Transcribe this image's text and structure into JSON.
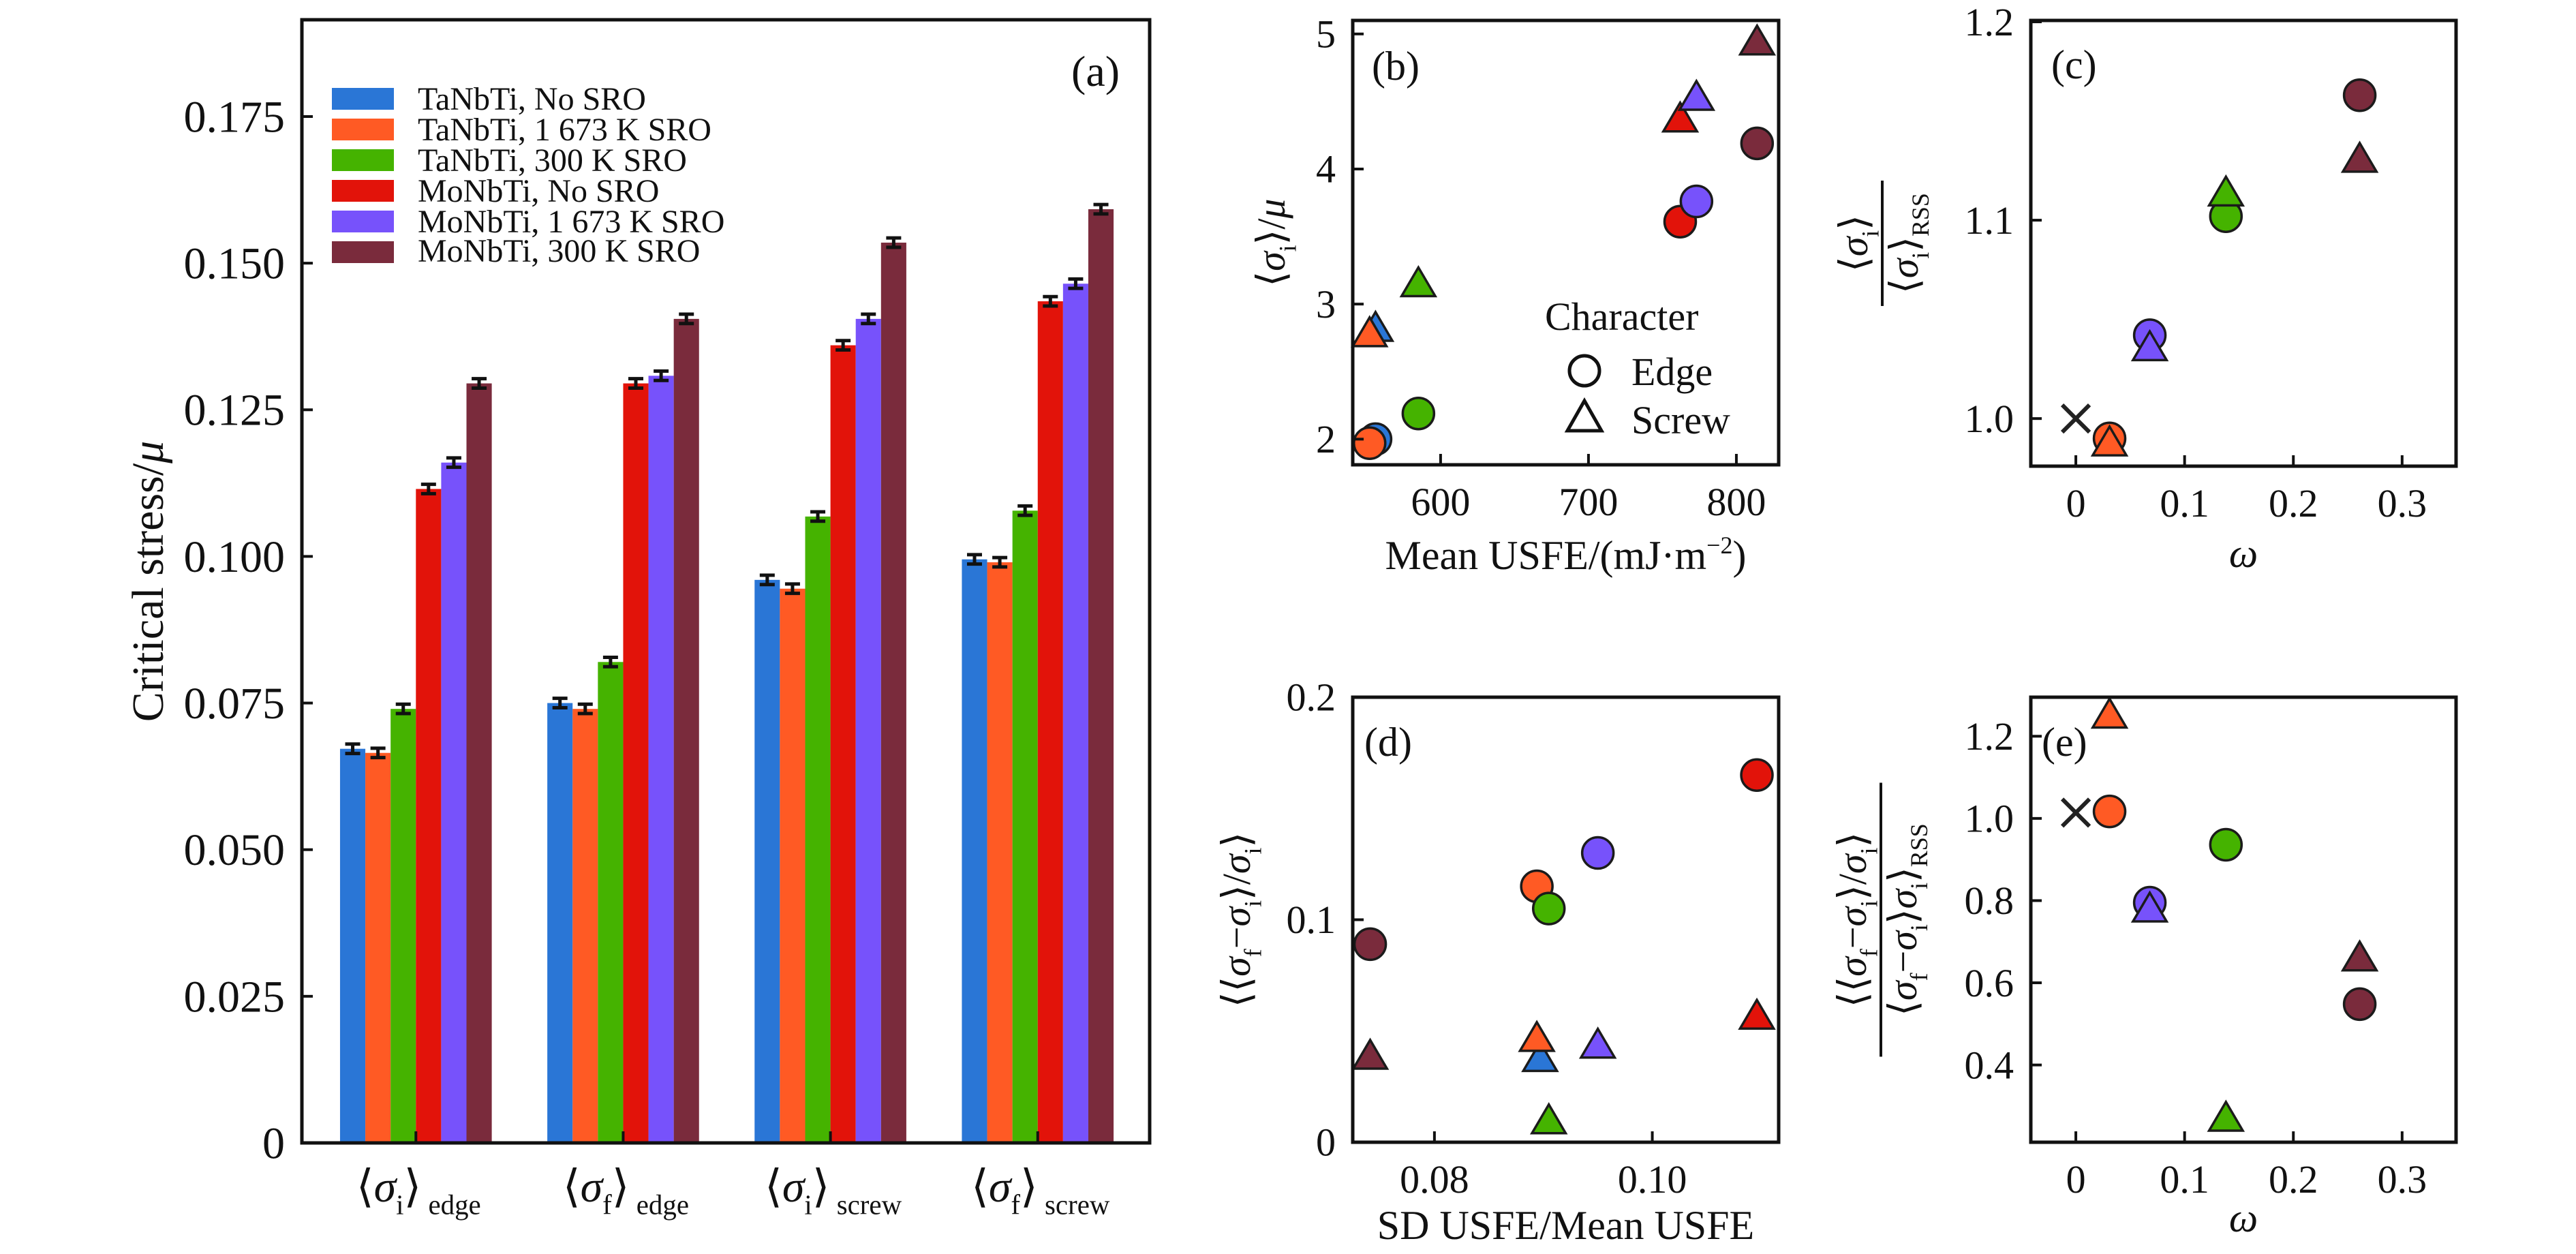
{
  "colors": {
    "series": [
      "#2a76d6",
      "#ff5a24",
      "#45b300",
      "#e2130a",
      "#7752fb",
      "#7a2b3c"
    ],
    "marker_edge": "#1b1b1b",
    "axes": "#111111"
  },
  "series_names": [
    "TaNbTi, No SRO",
    "TaNbTi, 1 673 K SRO",
    "TaNbTi, 300 K SRO",
    "MoNbTi, No SRO",
    "MoNbTi, 1 673 K SRO",
    "MoNbTi, 300 K SRO"
  ],
  "chart_data": [
    {
      "panel": "(a)",
      "type": "bar",
      "grid": false,
      "legend": "upper-left",
      "categories": [
        [
          {
            "t": "⟨"
          },
          {
            "t": "σ",
            "it": 1
          },
          {
            "t": "i",
            "sub": 1
          },
          {
            "t": "⟩"
          },
          {
            "t": " edge",
            "sub": 1
          }
        ],
        [
          {
            "t": "⟨"
          },
          {
            "t": "σ",
            "it": 1
          },
          {
            "t": "f",
            "sub": 1
          },
          {
            "t": "⟩"
          },
          {
            "t": " edge",
            "sub": 1
          }
        ],
        [
          {
            "t": "⟨"
          },
          {
            "t": "σ",
            "it": 1
          },
          {
            "t": "i",
            "sub": 1
          },
          {
            "t": "⟩"
          },
          {
            "t": " screw",
            "sub": 1
          }
        ],
        [
          {
            "t": "⟨"
          },
          {
            "t": "σ",
            "it": 1
          },
          {
            "t": "f",
            "sub": 1
          },
          {
            "t": "⟩"
          },
          {
            "t": " screw",
            "sub": 1
          }
        ]
      ],
      "ylabel": [
        {
          "t": "Critical stress/"
        },
        {
          "t": "μ",
          "it": 1
        }
      ],
      "ylim": [
        0,
        0.1915
      ],
      "xlim": [
        -0.55,
        3.54
      ],
      "yticks": [
        0,
        0.025,
        0.05,
        0.075,
        0.1,
        0.125,
        0.15,
        0.175
      ],
      "ytick_labels": [
        "0",
        "0.025",
        "0.050",
        "0.075",
        "0.100",
        "0.125",
        "0.150",
        "0.175"
      ],
      "series": [
        {
          "name": "TaNbTi, No SRO",
          "values": [
            0.0672,
            0.075,
            0.096,
            0.0995
          ],
          "error": [
            0.0008,
            0.0008,
            0.0008,
            0.0008
          ]
        },
        {
          "name": "TaNbTi, 1 673 K SRO",
          "values": [
            0.0665,
            0.074,
            0.0945,
            0.099
          ],
          "error": [
            0.0008,
            0.0008,
            0.0008,
            0.0008
          ]
        },
        {
          "name": "TaNbTi, 300 K SRO",
          "values": [
            0.074,
            0.082,
            0.1068,
            0.1078
          ],
          "error": [
            0.0008,
            0.0008,
            0.0008,
            0.0008
          ]
        },
        {
          "name": "MoNbTi, No SRO",
          "values": [
            0.1115,
            0.1295,
            0.136,
            0.1435
          ],
          "error": [
            0.0008,
            0.0008,
            0.0008,
            0.0008
          ]
        },
        {
          "name": "MoNbTi, 1 673 K SRO",
          "values": [
            0.116,
            0.1308,
            0.1405,
            0.1465
          ],
          "error": [
            0.0008,
            0.0008,
            0.0008,
            0.0008
          ]
        },
        {
          "name": "MoNbTi, 300 K SRO",
          "values": [
            0.1295,
            0.1405,
            0.1535,
            0.1592
          ],
          "error": [
            0.0008,
            0.0008,
            0.0008,
            0.0008
          ]
        }
      ]
    },
    {
      "panel": "(b)",
      "type": "scatter",
      "grid": false,
      "legend": "lower-right",
      "legend_title": "Character",
      "legend_entries": [
        {
          "shape": "circle",
          "label": "Edge"
        },
        {
          "shape": "triangle",
          "label": "Screw"
        }
      ],
      "xlabel": [
        {
          "t": "Mean USFE/(mJ·m"
        },
        {
          "t": "−2",
          "sup": 1
        },
        {
          "t": ")"
        }
      ],
      "ylabel": [
        {
          "t": "⟨"
        },
        {
          "t": "σ",
          "it": 1
        },
        {
          "t": "i",
          "sub": 1
        },
        {
          "t": "⟩/"
        },
        {
          "t": "μ",
          "it": 1
        }
      ],
      "xlim": [
        540.6,
        828.6
      ],
      "ylim": [
        1.81,
        5.1
      ],
      "xticks": [
        600,
        700,
        800
      ],
      "xtick_labels": [
        "600",
        "700",
        "800"
      ],
      "yticks": [
        2,
        3,
        4,
        5
      ],
      "ytick_labels": [
        "2",
        "3",
        "4",
        "5"
      ],
      "points": [
        {
          "series": 0,
          "shape": "circle",
          "x": 556,
          "y": 2.0
        },
        {
          "series": 0,
          "shape": "triangle",
          "x": 556,
          "y": 2.81
        },
        {
          "series": 1,
          "shape": "circle",
          "x": 552,
          "y": 1.97
        },
        {
          "series": 1,
          "shape": "triangle",
          "x": 552,
          "y": 2.77
        },
        {
          "series": 2,
          "shape": "circle",
          "x": 585,
          "y": 2.19
        },
        {
          "series": 2,
          "shape": "triangle",
          "x": 585,
          "y": 3.14
        },
        {
          "series": 3,
          "shape": "circle",
          "x": 762,
          "y": 3.61
        },
        {
          "series": 3,
          "shape": "triangle",
          "x": 762,
          "y": 4.36
        },
        {
          "series": 4,
          "shape": "circle",
          "x": 773,
          "y": 3.76
        },
        {
          "series": 4,
          "shape": "triangle",
          "x": 773,
          "y": 4.52
        },
        {
          "series": 5,
          "shape": "circle",
          "x": 814,
          "y": 4.19
        },
        {
          "series": 5,
          "shape": "triangle",
          "x": 814,
          "y": 4.93
        }
      ]
    },
    {
      "panel": "(c)",
      "type": "scatter",
      "grid": false,
      "xlabel": [
        {
          "t": "ω",
          "it": 1
        }
      ],
      "ylabel_fraction": {
        "num": [
          {
            "t": "⟨"
          },
          {
            "t": "σ",
            "it": 1
          },
          {
            "t": "i",
            "sub": 1
          },
          {
            "t": "⟩"
          }
        ],
        "den": [
          {
            "t": "⟨"
          },
          {
            "t": "σ",
            "it": 1
          },
          {
            "t": "i",
            "sub": 1
          },
          {
            "t": "⟩"
          },
          {
            "t": "RSS",
            "sub": 1
          }
        ]
      },
      "xlim": [
        -0.0414,
        0.3496
      ],
      "ylim": [
        0.976,
        1.2007
      ],
      "xticks": [
        0,
        0.1,
        0.2,
        0.3
      ],
      "xtick_labels": [
        "0",
        "0.1",
        "0.2",
        "0.3"
      ],
      "yticks": [
        1.0,
        1.1,
        1.2
      ],
      "ytick_labels": [
        "1.0",
        "1.1",
        "1.2"
      ],
      "points": [
        {
          "series": null,
          "shape": "x",
          "x": 0,
          "y": 1.0
        },
        {
          "series": 1,
          "shape": "circle",
          "x": 0.031,
          "y": 0.99
        },
        {
          "series": 1,
          "shape": "triangle",
          "x": 0.031,
          "y": 0.987
        },
        {
          "series": 4,
          "shape": "circle",
          "x": 0.068,
          "y": 1.042
        },
        {
          "series": 4,
          "shape": "triangle",
          "x": 0.068,
          "y": 1.035
        },
        {
          "series": 2,
          "shape": "circle",
          "x": 0.138,
          "y": 1.102
        },
        {
          "series": 2,
          "shape": "triangle",
          "x": 0.138,
          "y": 1.113
        },
        {
          "series": 5,
          "shape": "circle",
          "x": 0.261,
          "y": 1.163
        },
        {
          "series": 5,
          "shape": "triangle",
          "x": 0.261,
          "y": 1.13
        }
      ]
    },
    {
      "panel": "(d)",
      "type": "scatter",
      "grid": false,
      "xlabel": [
        {
          "t": "SD USFE/Mean USFE"
        }
      ],
      "ylabel": [
        {
          "t": "⟨⟨"
        },
        {
          "t": "σ",
          "it": 1
        },
        {
          "t": "f",
          "sub": 1
        },
        {
          "t": "−"
        },
        {
          "t": "σ",
          "it": 1
        },
        {
          "t": "i",
          "sub": 1
        },
        {
          "t": "⟩/"
        },
        {
          "t": "σ",
          "it": 1
        },
        {
          "t": "i",
          "sub": 1
        },
        {
          "t": "⟩"
        }
      ],
      "xlim": [
        0.0725,
        0.1116
      ],
      "ylim": [
        0,
        0.2
      ],
      "xticks": [
        0.08,
        0.1
      ],
      "xtick_labels": [
        "0.08",
        "0.10"
      ],
      "yticks": [
        0,
        0.1,
        0.2
      ],
      "ytick_labels": [
        "0",
        "0.1",
        "0.2"
      ],
      "points": [
        {
          "series": 0,
          "shape": "triangle",
          "x": 0.0897,
          "y": 0.037
        },
        {
          "series": 1,
          "shape": "circle",
          "x": 0.0894,
          "y": 0.115
        },
        {
          "series": 1,
          "shape": "triangle",
          "x": 0.0894,
          "y": 0.046
        },
        {
          "series": 2,
          "shape": "circle",
          "x": 0.0905,
          "y": 0.105
        },
        {
          "series": 2,
          "shape": "triangle",
          "x": 0.0905,
          "y": 0.009
        },
        {
          "series": 3,
          "shape": "circle",
          "x": 0.1096,
          "y": 0.165
        },
        {
          "series": 3,
          "shape": "triangle",
          "x": 0.1096,
          "y": 0.056
        },
        {
          "series": 4,
          "shape": "circle",
          "x": 0.095,
          "y": 0.13
        },
        {
          "series": 4,
          "shape": "triangle",
          "x": 0.095,
          "y": 0.043
        },
        {
          "series": 5,
          "shape": "circle",
          "x": 0.0741,
          "y": 0.089
        },
        {
          "series": 5,
          "shape": "triangle",
          "x": 0.0741,
          "y": 0.038
        }
      ]
    },
    {
      "panel": "(e)",
      "type": "scatter",
      "grid": false,
      "xlabel": [
        {
          "t": "ω",
          "it": 1
        }
      ],
      "ylabel_fraction": {
        "num": [
          {
            "t": "⟨⟨"
          },
          {
            "t": "σ",
            "it": 1
          },
          {
            "t": "f",
            "sub": 1
          },
          {
            "t": "−"
          },
          {
            "t": "σ",
            "it": 1
          },
          {
            "t": "i",
            "sub": 1
          },
          {
            "t": "⟩/"
          },
          {
            "t": "σ",
            "it": 1
          },
          {
            "t": "i",
            "sub": 1
          },
          {
            "t": "⟩"
          }
        ],
        "den": [
          {
            "t": "⟨"
          },
          {
            "t": "σ",
            "it": 1
          },
          {
            "t": "f",
            "sub": 1
          },
          {
            "t": "−"
          },
          {
            "t": "σ",
            "it": 1
          },
          {
            "t": "i",
            "sub": 1
          },
          {
            "t": "⟩"
          },
          {
            "t": "σ",
            "it": 1
          },
          {
            "t": "i",
            "sub": 1
          },
          {
            "t": "⟩"
          },
          {
            "t": "RSS",
            "sub": 1
          }
        ]
      },
      "xlim": [
        -0.0414,
        0.3496
      ],
      "ylim": [
        0.212,
        1.295
      ],
      "xticks": [
        0,
        0.1,
        0.2,
        0.3
      ],
      "xtick_labels": [
        "0",
        "0.1",
        "0.2",
        "0.3"
      ],
      "yticks": [
        0.4,
        0.6,
        0.8,
        1.0,
        1.2
      ],
      "ytick_labels": [
        "0.4",
        "0.6",
        "0.8",
        "1.0",
        "1.2"
      ],
      "points": [
        {
          "series": null,
          "shape": "x",
          "x": 0,
          "y": 1.014
        },
        {
          "series": 1,
          "shape": "circle",
          "x": 0.031,
          "y": 1.017
        },
        {
          "series": 1,
          "shape": "triangle",
          "x": 0.031,
          "y": 1.248
        },
        {
          "series": 4,
          "shape": "circle",
          "x": 0.068,
          "y": 0.795
        },
        {
          "series": 4,
          "shape": "triangle",
          "x": 0.068,
          "y": 0.776
        },
        {
          "series": 2,
          "shape": "circle",
          "x": 0.138,
          "y": 0.936
        },
        {
          "series": 2,
          "shape": "triangle",
          "x": 0.138,
          "y": 0.267
        },
        {
          "series": 5,
          "shape": "triangle",
          "x": 0.261,
          "y": 0.657
        },
        {
          "series": 5,
          "shape": "circle",
          "x": 0.261,
          "y": 0.548
        }
      ]
    }
  ]
}
